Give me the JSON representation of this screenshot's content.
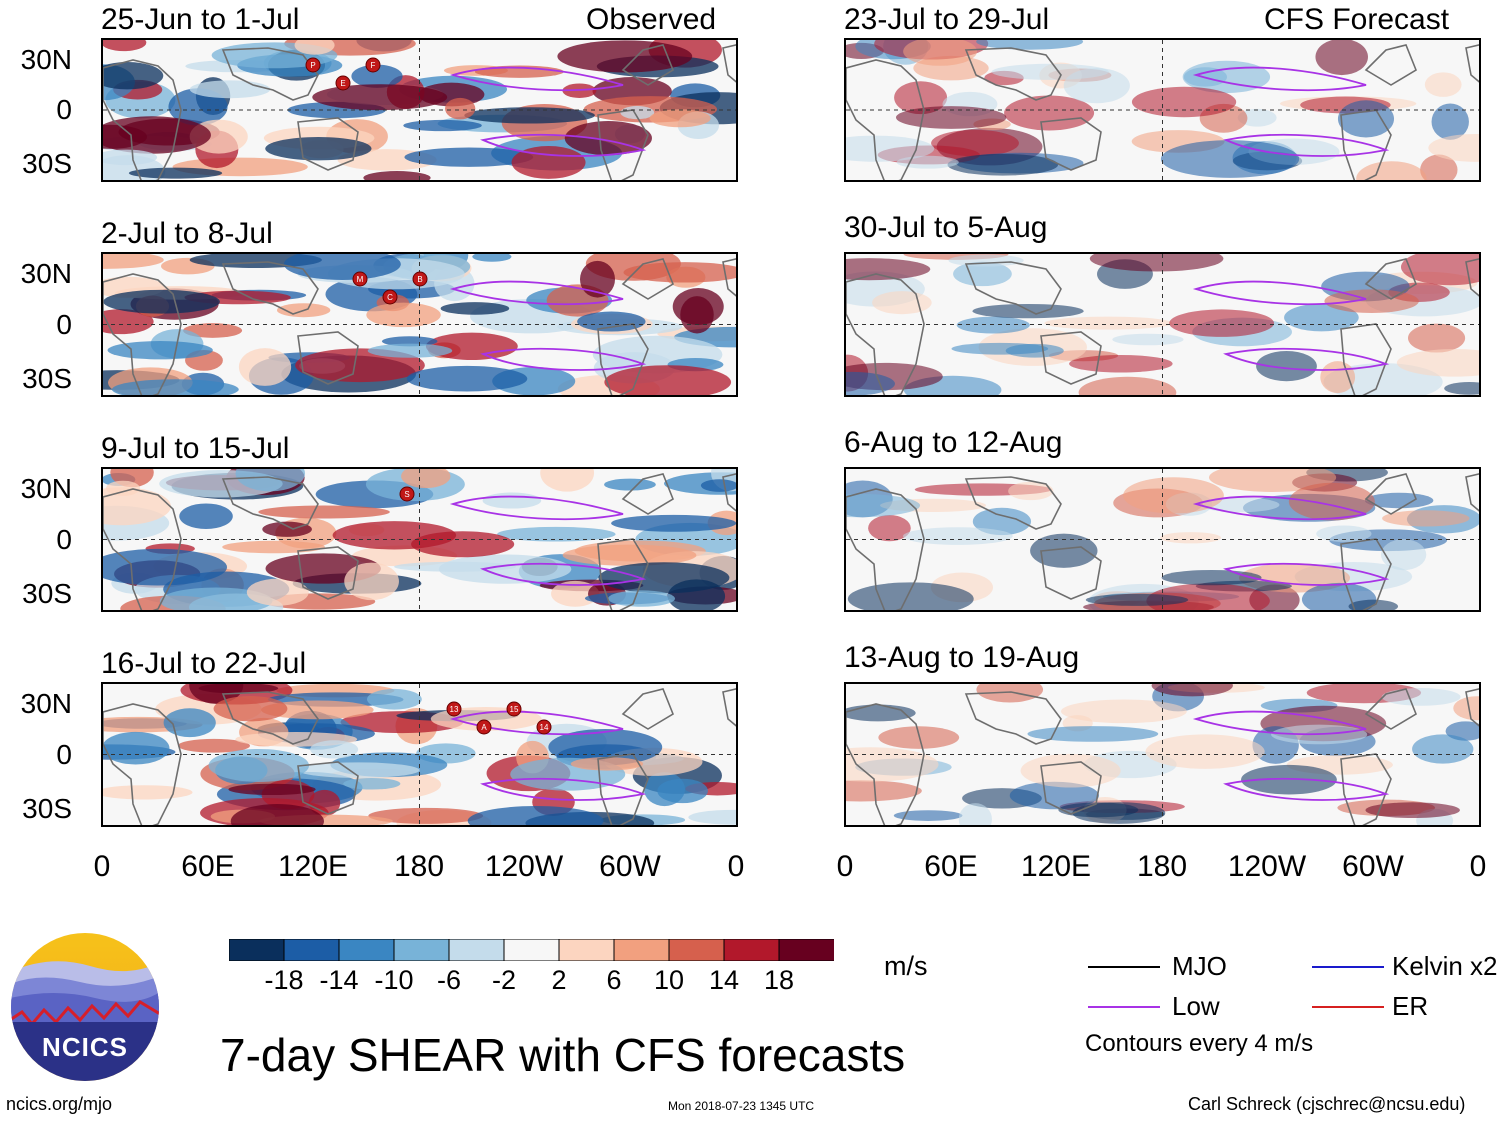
{
  "panels": {
    "observed": [
      {
        "title": "25-Jun to 1-Jul",
        "storms": [
          "P",
          "E",
          "F"
        ]
      },
      {
        "title": "2-Jul to 8-Jul",
        "storms": [
          "M",
          "C",
          "B"
        ]
      },
      {
        "title": "9-Jul to 15-Jul",
        "storms": [
          "S"
        ]
      },
      {
        "title": "16-Jul to 22-Jul",
        "storms": [
          "13",
          "A",
          "15",
          "14"
        ]
      }
    ],
    "forecast": [
      {
        "title": "23-Jul to 29-Jul"
      },
      {
        "title": "30-Jul to 5-Aug"
      },
      {
        "title": "6-Aug to 12-Aug"
      },
      {
        "title": "13-Aug to 19-Aug"
      }
    ],
    "observed_label": "Observed",
    "forecast_label": "CFS Forecast"
  },
  "axes": {
    "lat_ticks": [
      "30N",
      "0",
      "30S"
    ],
    "lon_ticks": [
      "0",
      "60E",
      "120E",
      "180",
      "120W",
      "60W",
      "0"
    ]
  },
  "colorbar": {
    "labels": [
      "-18",
      "-14",
      "-10",
      "-6",
      "-2",
      "2",
      "6",
      "10",
      "14",
      "18"
    ],
    "colors": [
      "#0a2f5c",
      "#1c5da6",
      "#3a86c2",
      "#78b3d8",
      "#c4dceb",
      "#f7f7f7",
      "#fcd5c0",
      "#f2a07f",
      "#d6604d",
      "#b2182b",
      "#67001f"
    ],
    "units": "m/s"
  },
  "legend": {
    "items": [
      {
        "label": "MJO",
        "color": "#000000"
      },
      {
        "label": "Kelvin x2",
        "color": "#1a1acc"
      },
      {
        "label": "Low",
        "color": "#a833e6"
      },
      {
        "label": "ER",
        "color": "#d62020"
      }
    ],
    "note": "Contours every 4 m/s"
  },
  "branding": {
    "logo_text": "NCICS",
    "title": "7-day SHEAR with CFS forecasts",
    "url": "ncics.org/mjo",
    "timestamp": "Mon 2018-07-23 1345 UTC",
    "author": "Carl Schreck (cjschrec@ncsu.edu)"
  }
}
